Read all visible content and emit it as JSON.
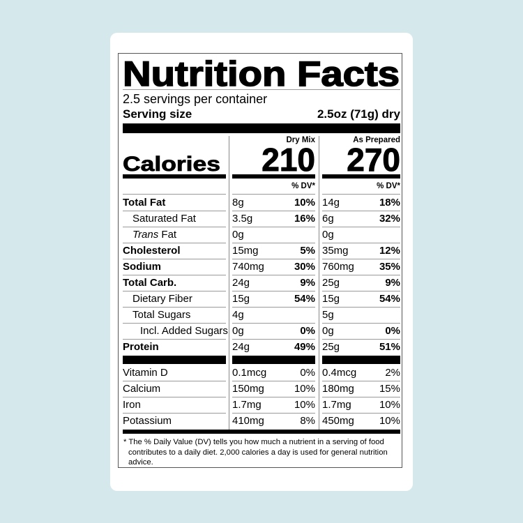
{
  "header": {
    "title": "Nutrition Facts",
    "servings": "2.5 servings per container",
    "serving_size_label": "Serving size",
    "serving_size_value": "2.5oz (71g) dry"
  },
  "columns": {
    "dry": {
      "label": "Dry Mix",
      "calories": "210"
    },
    "prepared": {
      "label": "As Prepared",
      "calories": "270"
    }
  },
  "calories_label": "Calories",
  "dv_header": "% DV*",
  "nutrients": [
    {
      "label": "Total Fat",
      "bold": true,
      "indent": 0,
      "dry": "8g",
      "dry_dv": "10%",
      "prep": "14g",
      "prep_dv": "18%"
    },
    {
      "label": "Saturated Fat",
      "bold": false,
      "indent": 1,
      "dry": "3.5g",
      "dry_dv": "16%",
      "prep": "6g",
      "prep_dv": "32%"
    },
    {
      "label_italic": "Trans",
      "label": " Fat",
      "bold": false,
      "indent": 1,
      "dry": "0g",
      "dry_dv": "",
      "prep": "0g",
      "prep_dv": ""
    },
    {
      "label": "Cholesterol",
      "bold": true,
      "indent": 0,
      "dry": "15mg",
      "dry_dv": "5%",
      "prep": "35mg",
      "prep_dv": "12%"
    },
    {
      "label": "Sodium",
      "bold": true,
      "indent": 0,
      "dry": "740mg",
      "dry_dv": "30%",
      "prep": "760mg",
      "prep_dv": "35%"
    },
    {
      "label": "Total Carb.",
      "bold": true,
      "indent": 0,
      "dry": "24g",
      "dry_dv": "9%",
      "prep": "25g",
      "prep_dv": "9%"
    },
    {
      "label": "Dietary Fiber",
      "bold": false,
      "indent": 1,
      "dry": "15g",
      "dry_dv": "54%",
      "prep": "15g",
      "prep_dv": "54%"
    },
    {
      "label": "Total Sugars",
      "bold": false,
      "indent": 1,
      "dry": "4g",
      "dry_dv": "",
      "prep": "5g",
      "prep_dv": ""
    },
    {
      "label": "Incl. Added Sugars",
      "bold": false,
      "indent": 2,
      "dry": "0g",
      "dry_dv": "0%",
      "prep": "0g",
      "prep_dv": "0%"
    },
    {
      "label": "Protein",
      "bold": true,
      "indent": 0,
      "dry": "24g",
      "dry_dv": "49%",
      "prep": "25g",
      "prep_dv": "51%"
    }
  ],
  "vitamins": [
    {
      "label": "Vitamin D",
      "dry": "0.1mcg",
      "dry_dv": "0%",
      "prep": "0.4mcg",
      "prep_dv": "2%"
    },
    {
      "label": "Calcium",
      "dry": "150mg",
      "dry_dv": "10%",
      "prep": "180mg",
      "prep_dv": "15%"
    },
    {
      "label": "Iron",
      "dry": "1.7mg",
      "dry_dv": "10%",
      "prep": "1.7mg",
      "prep_dv": "10%"
    },
    {
      "label": "Potassium",
      "dry": "410mg",
      "dry_dv": "8%",
      "prep": "450mg",
      "prep_dv": "10%"
    }
  ],
  "footnote": "* The % Daily Value (DV) tells you how much a nutrient in a serving of food contributes to a daily diet. 2,000 calories a day is used for general nutrition advice.",
  "colors": {
    "background": "#d5e8ec",
    "card": "#ffffff",
    "ink": "#000000"
  }
}
